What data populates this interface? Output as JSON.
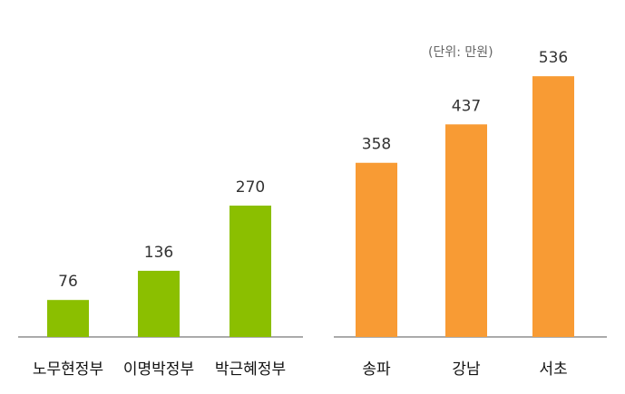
{
  "unit_note": "(단위: 만원)",
  "chart_data": [
    {
      "type": "bar",
      "categories": [
        "노무현정부",
        "이명박정부",
        "박근혜정부"
      ],
      "values": [
        76,
        136,
        270
      ],
      "data_labels": [
        "76",
        "136",
        "270"
      ],
      "color": "#8bbf00",
      "grid": false
    },
    {
      "type": "bar",
      "categories": [
        "송파",
        "강남",
        "서초"
      ],
      "values": [
        358,
        437,
        536
      ],
      "data_labels": [
        "358",
        "437",
        "536"
      ],
      "color": "#f89b34",
      "grid": false
    }
  ]
}
